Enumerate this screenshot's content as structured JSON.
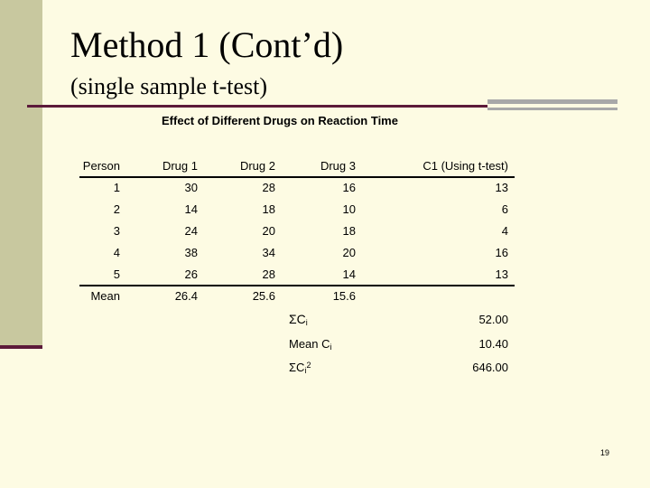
{
  "slide": {
    "title": "Method 1 (Cont’d)",
    "subtitle": "(single sample t-test)",
    "page_number": "19"
  },
  "table": {
    "caption": "Effect of Different Drugs on Reaction Time",
    "headers": [
      "Person",
      "Drug 1",
      "Drug 2",
      "Drug 3",
      "C1 (Using t-test)"
    ],
    "rows": [
      [
        "1",
        "30",
        "28",
        "16",
        "13"
      ],
      [
        "2",
        "14",
        "18",
        "10",
        "6"
      ],
      [
        "3",
        "24",
        "20",
        "18",
        "4"
      ],
      [
        "4",
        "38",
        "34",
        "20",
        "16"
      ],
      [
        "5",
        "26",
        "28",
        "14",
        "13"
      ]
    ],
    "mean_row": [
      "Mean",
      "26.4",
      "25.6",
      "15.6"
    ]
  },
  "summary": {
    "sum_label": "ΣC",
    "sum_sub": "i",
    "sum_value": "52.00",
    "mean_label": "Mean C",
    "mean_sub": "i",
    "mean_value": "10.40",
    "sumsq_label": "ΣC",
    "sumsq_sub": "i",
    "sumsq_sup": "2",
    "sumsq_value": "646.00"
  }
}
